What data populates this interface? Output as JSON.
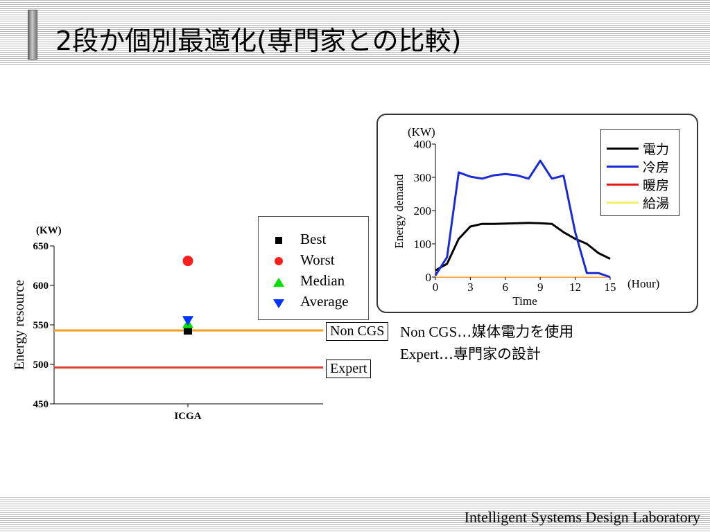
{
  "header": {
    "title": "2段か個別最適化(専門家との比較)"
  },
  "footer": {
    "lab_name": "Intelligent Systems Design Laboratory"
  },
  "colors": {
    "non_cgs_line": "#f39c22",
    "expert_line": "#e23b3b",
    "best": "#000000",
    "worst": "#ff1f1f",
    "median": "#00e000",
    "average": "#0033ff",
    "denryoku": "#000000",
    "reibou": "#1a2bd6",
    "danbou": "#e01b1b",
    "kyuutou": "#f5f066"
  },
  "chart_data": [
    {
      "type": "scatter",
      "title": "",
      "xlabel": "",
      "ylabel": "Energy resource",
      "y_unit": "(KW)",
      "ylim": [
        450,
        650
      ],
      "yticks": [
        450,
        500,
        550,
        600,
        650
      ],
      "categories": [
        "ICGA"
      ],
      "series": [
        {
          "name": "Best",
          "marker": "square",
          "color": "#000000",
          "values": [
            543
          ]
        },
        {
          "name": "Worst",
          "marker": "circle",
          "color": "#ff1f1f",
          "values": [
            631
          ]
        },
        {
          "name": "Median",
          "marker": "triangle-up",
          "color": "#00e000",
          "values": [
            552
          ]
        },
        {
          "name": "Average",
          "marker": "triangle-down",
          "color": "#0033ff",
          "values": [
            555
          ]
        }
      ],
      "reference_lines": [
        {
          "name": "Non CGS",
          "value": 543,
          "color": "#f39c22"
        },
        {
          "name": "Expert",
          "value": 496,
          "color": "#e23b3b"
        }
      ],
      "legend": "top-right"
    },
    {
      "type": "line",
      "title": "",
      "xlabel": "Time",
      "x_unit": "(Hour)",
      "ylabel": "Energy demand",
      "y_unit": "(KW)",
      "xlim": [
        0,
        15
      ],
      "ylim": [
        0,
        400
      ],
      "xticks": [
        0,
        3,
        6,
        9,
        12,
        15
      ],
      "yticks": [
        0,
        100,
        200,
        300,
        400
      ],
      "x": [
        0,
        1,
        2,
        3,
        4,
        5,
        6,
        7,
        8,
        9,
        10,
        11,
        12,
        13,
        14,
        15
      ],
      "series": [
        {
          "name": "電力",
          "color": "#000000",
          "values": [
            20,
            40,
            115,
            152,
            160,
            160,
            161,
            162,
            163,
            162,
            160,
            135,
            115,
            100,
            72,
            55
          ]
        },
        {
          "name": "冷房",
          "color": "#1a2bd6",
          "values": [
            5,
            60,
            315,
            302,
            296,
            306,
            310,
            306,
            296,
            350,
            296,
            305,
            135,
            12,
            12,
            0
          ]
        },
        {
          "name": "暖房",
          "color": "#e01b1b",
          "values": [
            1,
            1,
            1,
            1,
            1,
            1,
            1,
            1,
            1,
            1,
            1,
            1,
            1,
            1,
            1,
            1
          ]
        },
        {
          "name": "給湯",
          "color": "#f5f066",
          "values": [
            2,
            2,
            2,
            2,
            2,
            2,
            2,
            2,
            2,
            2,
            2,
            2,
            2,
            2,
            2,
            2
          ]
        }
      ],
      "legend": "top-right"
    }
  ],
  "annotations": {
    "non_cgs_box": "Non CGS",
    "expert_box": "Expert",
    "note1_latin": "Non CGS",
    "note1_rest": "…媒体電力を使用",
    "note2_latin": "Expert",
    "note2_rest": "…専門家の設計"
  }
}
